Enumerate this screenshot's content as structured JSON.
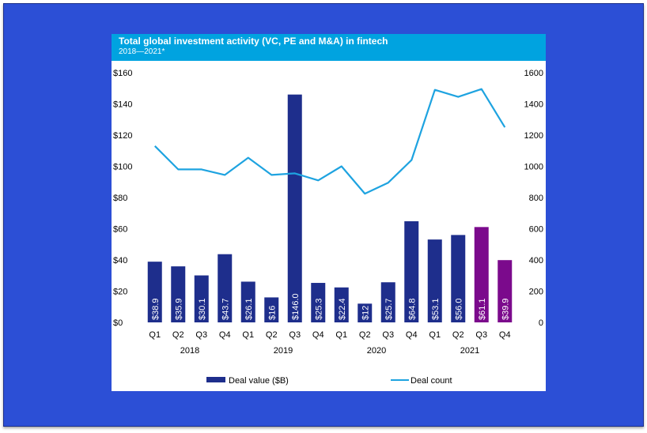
{
  "header": {
    "title": "Total global investment activity (VC, PE and M&A) in fintech",
    "subtitle": "2018—2021*"
  },
  "chart_data": {
    "type": "bar",
    "categories": [
      "Q1",
      "Q2",
      "Q3",
      "Q4",
      "Q1",
      "Q2",
      "Q3",
      "Q4",
      "Q1",
      "Q2",
      "Q3",
      "Q4",
      "Q1",
      "Q2",
      "Q3",
      "Q4"
    ],
    "years": [
      "2018",
      "2019",
      "2020",
      "2021"
    ],
    "y_left_ticks": [
      "$0",
      "$20",
      "$40",
      "$60",
      "$80",
      "$100",
      "$120",
      "$140",
      "$160"
    ],
    "y_left_range": [
      0,
      160
    ],
    "y_right_ticks": [
      "0",
      "200",
      "400",
      "600",
      "800",
      "1000",
      "1200",
      "1400",
      "1600"
    ],
    "y_right_range": [
      0,
      1600
    ],
    "series": [
      {
        "name": "Deal value ($B)",
        "type": "bar",
        "axis": "left",
        "values": [
          38.9,
          35.9,
          30.1,
          43.7,
          26.1,
          16,
          146.0,
          25.3,
          22.4,
          12,
          25.7,
          64.8,
          53.1,
          56.0,
          61.1,
          39.9
        ],
        "labels": [
          "$38.9",
          "$35.9",
          "$30.1",
          "$43.7",
          "$26.1",
          "$16",
          "$146.0",
          "$25.3",
          "$22.4",
          "$12",
          "$25.7",
          "$64.8",
          "$53.1",
          "$56.0",
          "$61.1",
          "$39.9"
        ],
        "colors": [
          "#1e2e8c",
          "#1e2e8c",
          "#1e2e8c",
          "#1e2e8c",
          "#1e2e8c",
          "#1e2e8c",
          "#1e2e8c",
          "#1e2e8c",
          "#1e2e8c",
          "#1e2e8c",
          "#1e2e8c",
          "#1e2e8c",
          "#1e2e8c",
          "#1e2e8c",
          "#7b0a8c",
          "#7b0a8c"
        ]
      },
      {
        "name": "Deal count",
        "type": "line",
        "axis": "right",
        "color": "#1ea3e0",
        "values": [
          1130,
          980,
          980,
          945,
          1055,
          945,
          955,
          910,
          1000,
          825,
          895,
          1040,
          1490,
          1445,
          1495,
          1250
        ]
      }
    ],
    "legend_position": "bottom",
    "grid": false
  },
  "colors": {
    "background": "#2c4fd6",
    "header": "#00a3e0",
    "bar": "#1e2e8c",
    "bar_highlight": "#7b0a8c",
    "line": "#1ea3e0"
  }
}
